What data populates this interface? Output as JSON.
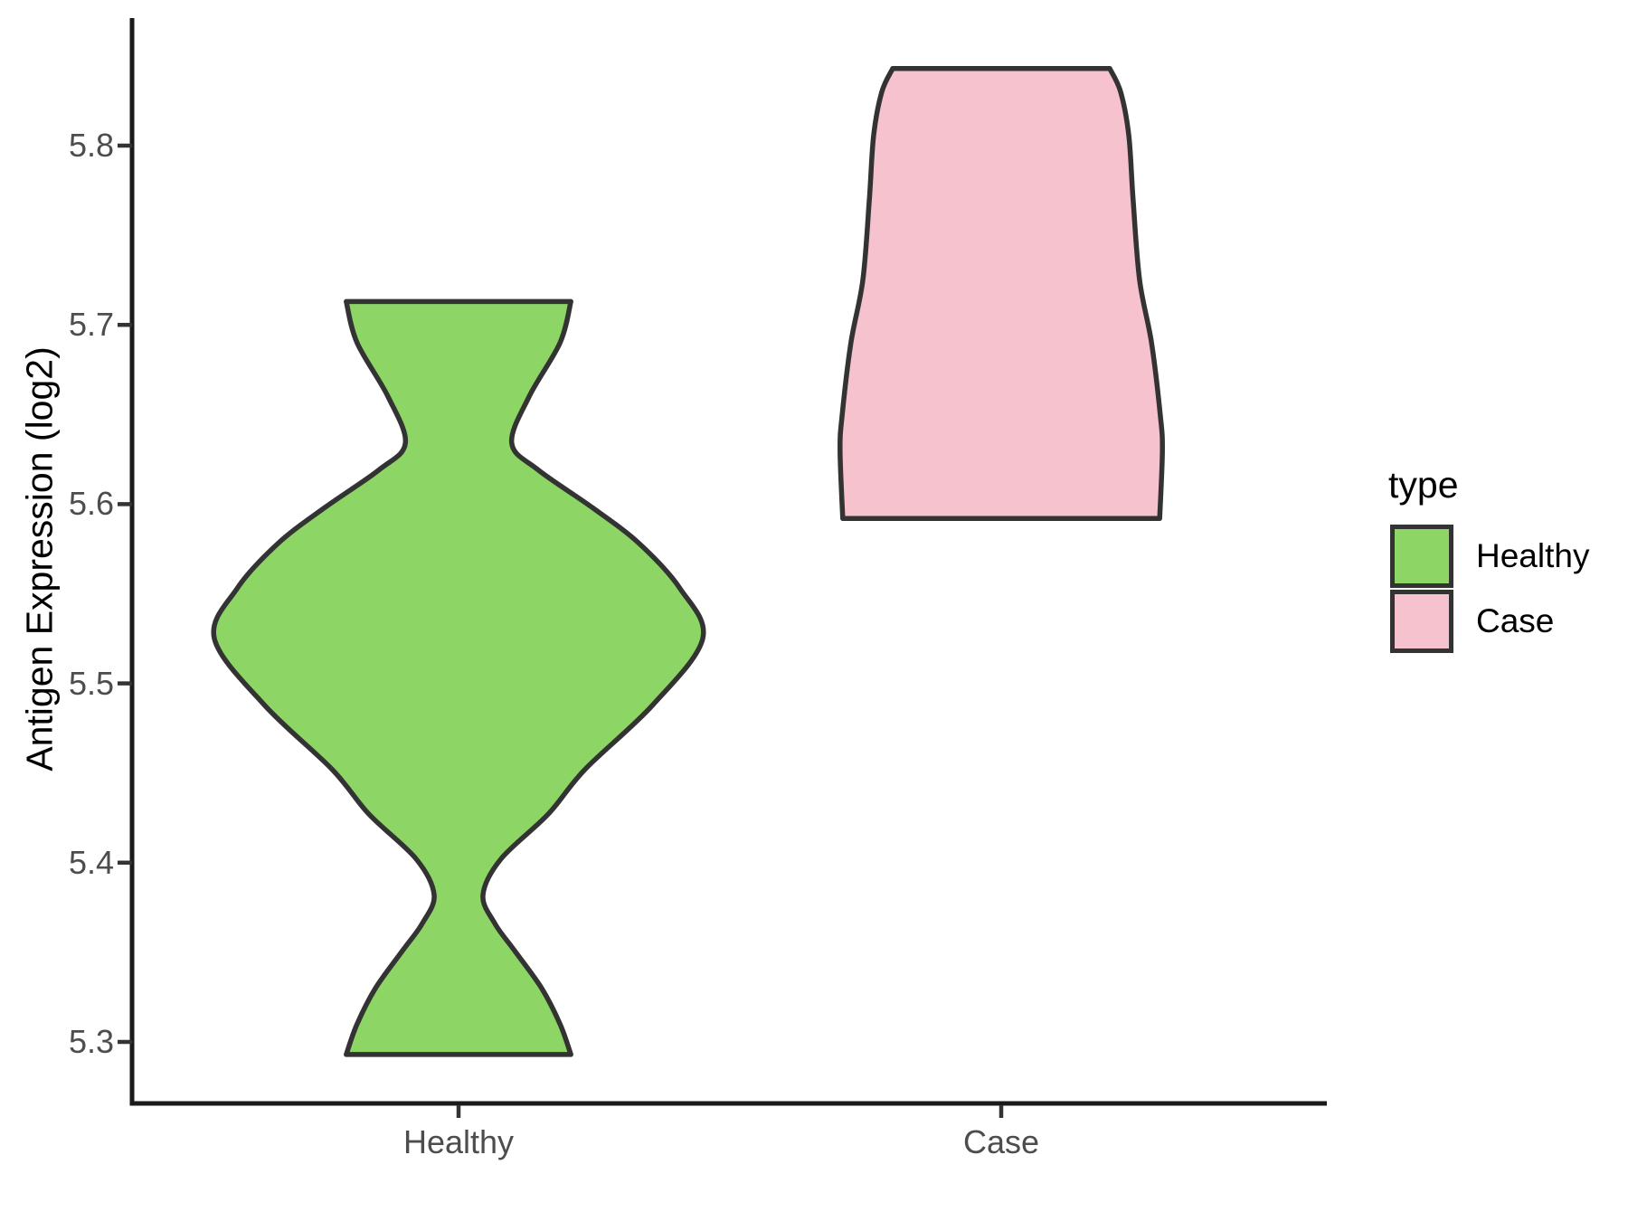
{
  "chart_data": {
    "type": "violin",
    "title": "",
    "xlabel": "",
    "ylabel": "Antigen Expression (log2)",
    "categories": [
      "Healthy",
      "Case"
    ],
    "y_ticks": {
      "values": [
        5.3,
        5.4,
        5.5,
        5.6,
        5.7,
        5.8
      ],
      "labels": [
        "5.3",
        "5.4",
        "5.5",
        "5.6",
        "5.7",
        "5.8"
      ]
    },
    "y_axis_range": [
      5.265,
      5.87
    ],
    "grid": "off",
    "legend": {
      "title": "type",
      "position": "right",
      "entries": [
        {
          "label": "Healthy",
          "color": "#8DD564"
        },
        {
          "label": "Case",
          "color": "#F6C2CE"
        }
      ]
    },
    "series": [
      {
        "name": "Healthy",
        "fill": "#8DD564",
        "y_min": 5.293,
        "y_max": 5.713,
        "profile": [
          [
            5.293,
            0.207
          ],
          [
            5.31,
            0.187
          ],
          [
            5.33,
            0.153
          ],
          [
            5.351,
            0.103
          ],
          [
            5.366,
            0.067
          ],
          [
            5.382,
            0.045
          ],
          [
            5.402,
            0.078
          ],
          [
            5.427,
            0.165
          ],
          [
            5.452,
            0.233
          ],
          [
            5.488,
            0.358
          ],
          [
            5.525,
            0.45
          ],
          [
            5.553,
            0.408
          ],
          [
            5.578,
            0.333
          ],
          [
            5.598,
            0.247
          ],
          [
            5.619,
            0.147
          ],
          [
            5.634,
            0.098
          ],
          [
            5.66,
            0.13
          ],
          [
            5.69,
            0.187
          ],
          [
            5.713,
            0.207
          ]
        ]
      },
      {
        "name": "Case",
        "fill": "#F6C2CE",
        "y_min": 5.592,
        "y_max": 5.843,
        "profile": [
          [
            5.592,
            0.292
          ],
          [
            5.63,
            0.297
          ],
          [
            5.65,
            0.293
          ],
          [
            5.69,
            0.277
          ],
          [
            5.725,
            0.255
          ],
          [
            5.77,
            0.243
          ],
          [
            5.806,
            0.235
          ],
          [
            5.83,
            0.22
          ],
          [
            5.843,
            0.2
          ]
        ]
      }
    ],
    "colors": {
      "outline": "#333333",
      "axis_line": "#1a1a1a",
      "tick_mark": "#333333",
      "tick_text": "#4d4d4d",
      "title_text": "#000000"
    }
  }
}
